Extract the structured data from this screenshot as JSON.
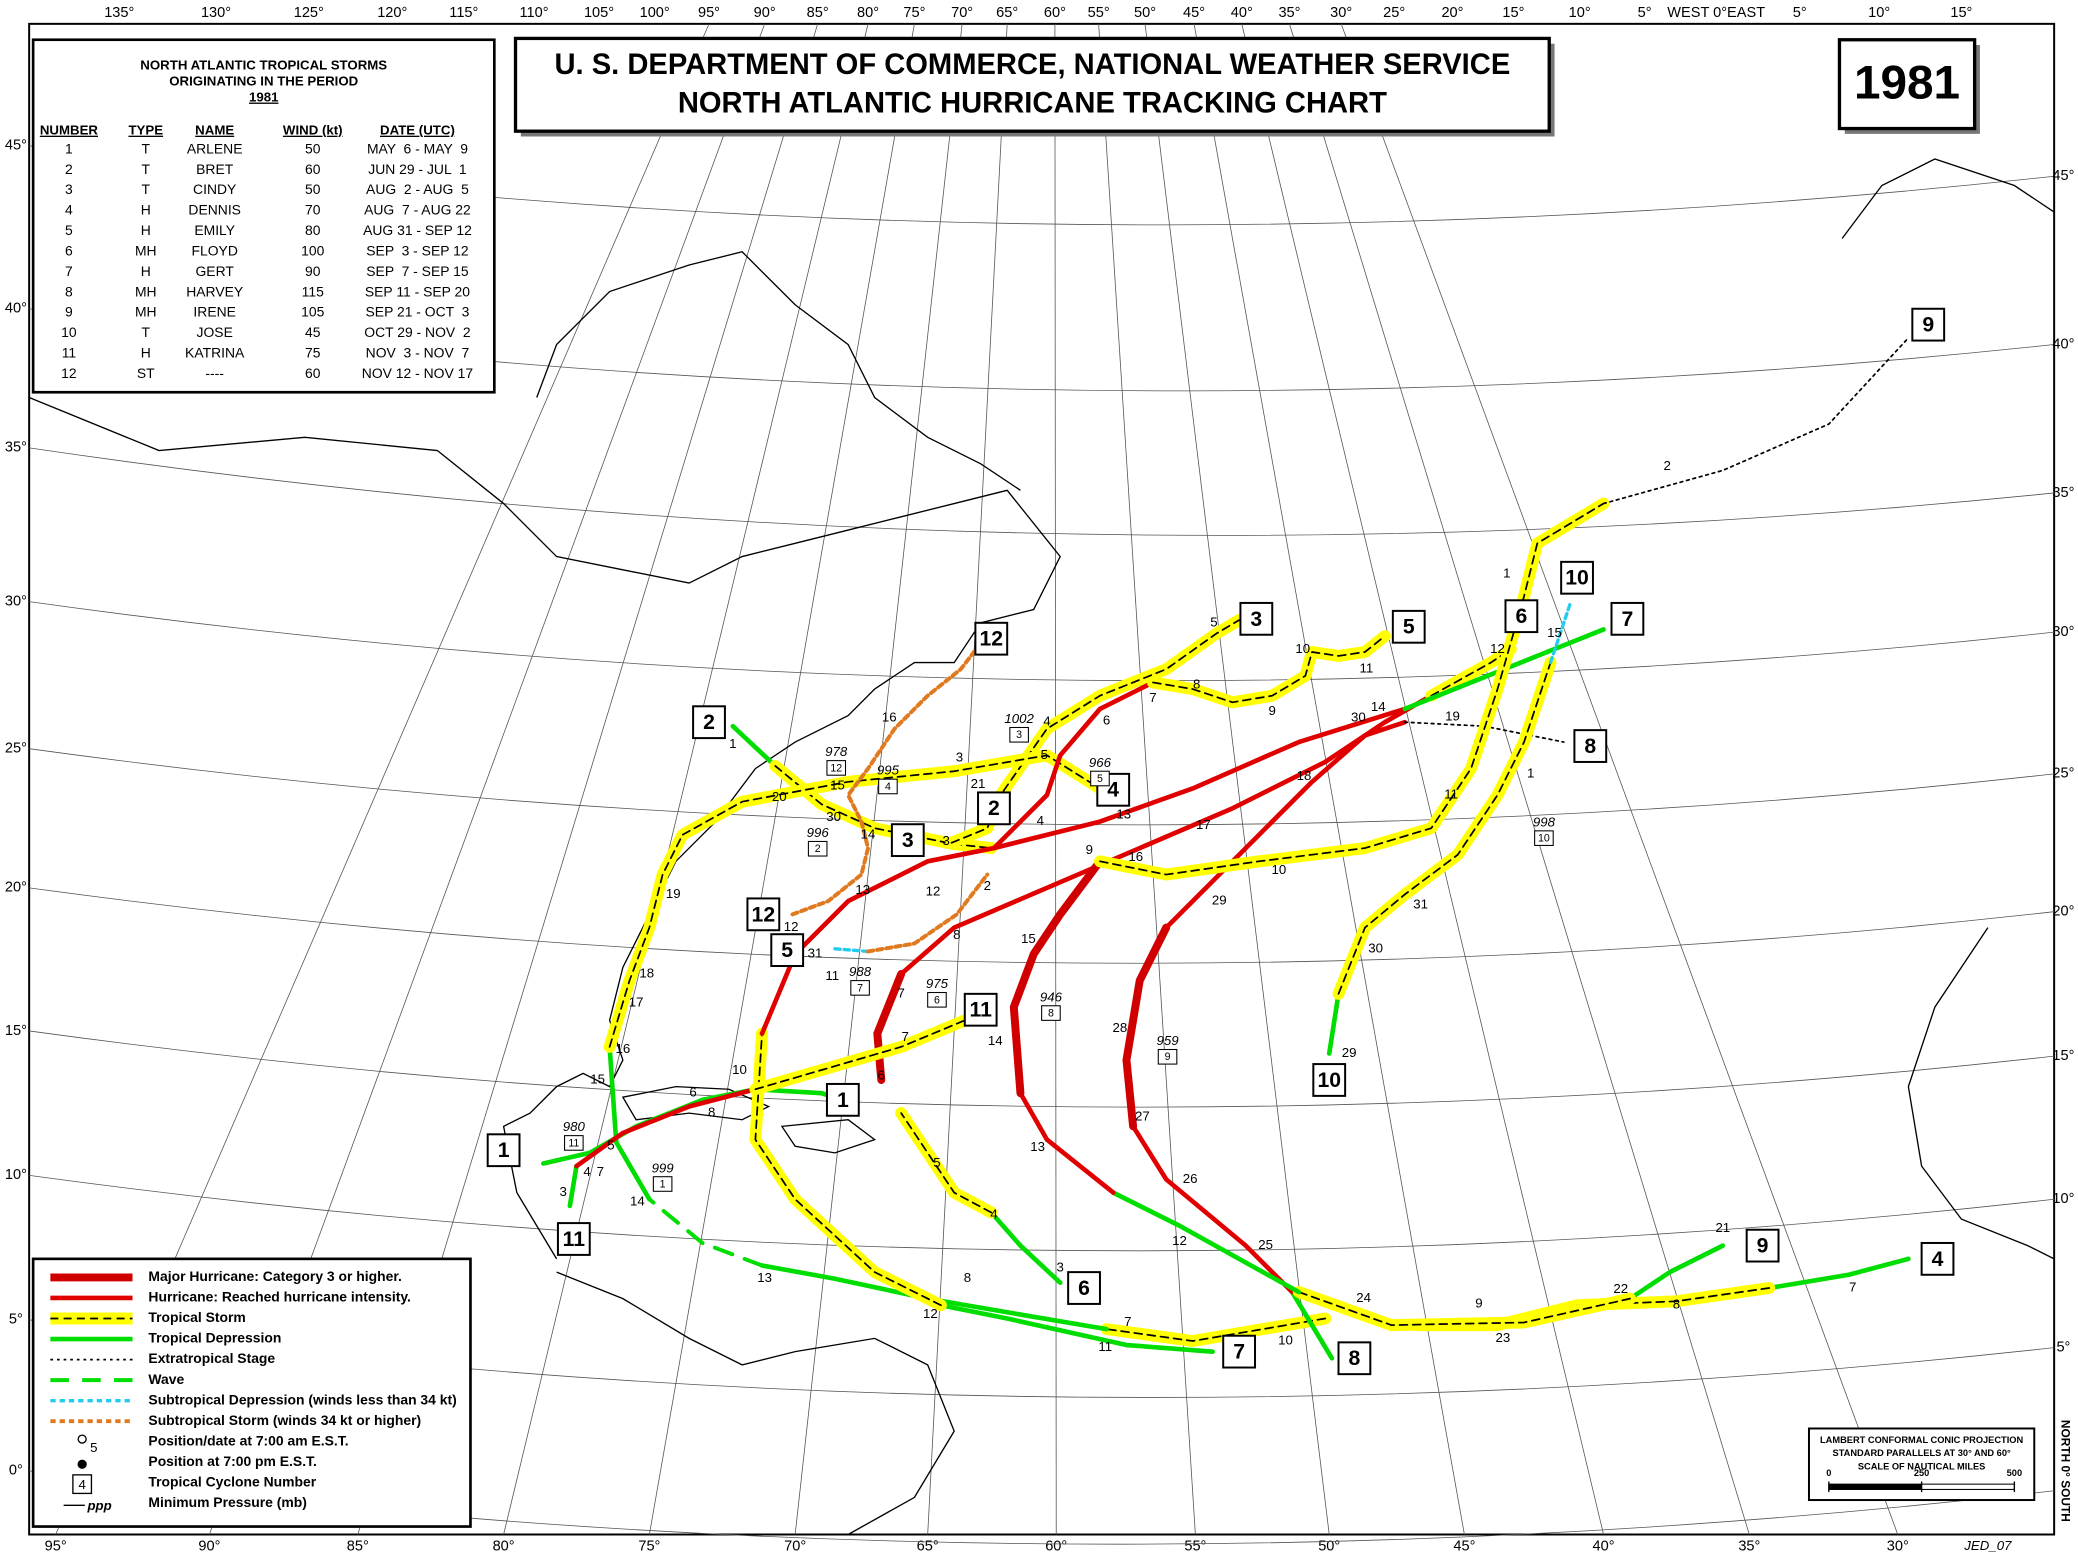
{
  "header": {
    "title_line1": "U. S. DEPARTMENT OF COMMERCE, NATIONAL WEATHER SERVICE",
    "title_line2": "NORTH ATLANTIC HURRICANE TRACKING CHART",
    "year": "1981"
  },
  "storm_table": {
    "title_lines": [
      "NORTH ATLANTIC TROPICAL STORMS",
      "ORIGINATING IN THE PERIOD",
      "1981"
    ],
    "columns": [
      "NUMBER",
      "TYPE",
      "NAME",
      "WIND (kt)",
      "DATE (UTC)"
    ],
    "rows": [
      [
        1,
        "T",
        "ARLENE",
        50,
        "MAY  6 - MAY  9"
      ],
      [
        2,
        "T",
        "BRET",
        60,
        "JUN 29 - JUL  1"
      ],
      [
        3,
        "T",
        "CINDY",
        50,
        "AUG  2 - AUG  5"
      ],
      [
        4,
        "H",
        "DENNIS",
        70,
        "AUG  7 - AUG 22"
      ],
      [
        5,
        "H",
        "EMILY",
        80,
        "AUG 31 - SEP 12"
      ],
      [
        6,
        "MH",
        "FLOYD",
        100,
        "SEP  3 - SEP 12"
      ],
      [
        7,
        "H",
        "GERT",
        90,
        "SEP  7 - SEP 15"
      ],
      [
        8,
        "MH",
        "HARVEY",
        115,
        "SEP 11 - SEP 20"
      ],
      [
        9,
        "MH",
        "IRENE",
        105,
        "SEP 21 - OCT  3"
      ],
      [
        10,
        "T",
        "JOSE",
        45,
        "OCT 29 - NOV  2"
      ],
      [
        11,
        "H",
        "KATRINA",
        75,
        "NOV  3 - NOV  7"
      ],
      [
        12,
        "ST",
        "----",
        60,
        "NOV 12 - NOV 17"
      ]
    ]
  },
  "legend": {
    "items": [
      "Major Hurricane: Category 3 or higher.",
      "Hurricane: Reached hurricane intensity.",
      "Tropical Storm",
      "Tropical Depression",
      "Extratropical Stage",
      "Wave",
      "Subtropical Depression (winds less than 34 kt)",
      "Subtropical Storm (winds 34 kt or higher)",
      "Position/date at 7:00 am E.S.T.",
      "Position at 7:00 pm E.S.T.",
      "Tropical Cyclone Number",
      "Minimum Pressure (mb)"
    ],
    "symbol_labels": [
      "5",
      "4",
      "ppp"
    ]
  },
  "projection": {
    "lines": [
      "LAMBERT CONFORMAL CONIC PROJECTION",
      "STANDARD PARALLELS AT 30° AND 60°",
      "SCALE OF NAUTICAL MILES"
    ],
    "scale_ticks": [
      0,
      250,
      500
    ]
  },
  "credit": "JED_07",
  "hemisphere_note": "NORTH 0° SOUTH",
  "longitude_labels_top": [
    "135°",
    "130°",
    "125°",
    "120°",
    "115°",
    "110°",
    "105°",
    "100°",
    "95°",
    "90°",
    "85°",
    "80°",
    "75°",
    "70°",
    "65°",
    "60°",
    "55°",
    "50°",
    "45°",
    "40°",
    "35°",
    "30°",
    "25°",
    "20°",
    "15°",
    "10°",
    "5°",
    "WEST 0°EAST",
    "5°",
    "10°",
    "15°"
  ],
  "longitude_labels_bottom": [
    "95°",
    "90°",
    "85°",
    "80°",
    "75°",
    "70°",
    "65°",
    "60°",
    "55°",
    "50°",
    "45°",
    "40°",
    "35°",
    "30°"
  ],
  "latitude_labels_left": [
    "45°",
    "40°",
    "35°",
    "30°",
    "25°",
    "20°",
    "15°",
    "10°",
    "5°",
    "0°"
  ],
  "latitude_labels_right": [
    "45°",
    "40°",
    "35°",
    "30°",
    "25°",
    "20°",
    "15°",
    "10°",
    "5°"
  ],
  "storm_labels": [
    "1",
    "1",
    "2",
    "2",
    "3",
    "3",
    "4",
    "4",
    "5",
    "5",
    "6",
    "6",
    "7",
    "7",
    "8",
    "8",
    "9",
    "9",
    "10",
    "10",
    "11",
    "11",
    "12",
    "12"
  ],
  "pressure_labels": [
    {
      "pressure": 1002,
      "storm": "3"
    },
    {
      "pressure": 978,
      "storm": "12"
    },
    {
      "pressure": 995,
      "storm": "4"
    },
    {
      "pressure": 996,
      "storm": "2"
    },
    {
      "pressure": 966,
      "storm": "5"
    },
    {
      "pressure": 988,
      "storm": "7"
    },
    {
      "pressure": 975,
      "storm": "6"
    },
    {
      "pressure": 946,
      "storm": "8"
    },
    {
      "pressure": 959,
      "storm": "9"
    },
    {
      "pressure": 980,
      "storm": "11"
    },
    {
      "pressure": 999,
      "storm": "1"
    },
    {
      "pressure": 998,
      "storm": "10"
    }
  ],
  "date_labels": [
    "1",
    "20",
    "15",
    "30",
    "14",
    "13",
    "12",
    "19",
    "18",
    "17",
    "16",
    "15",
    "5",
    "4",
    "7",
    "3",
    "14",
    "13",
    "12",
    "11",
    "10",
    "7",
    "6",
    "8",
    "10",
    "11",
    "7",
    "7",
    "6",
    "5",
    "4",
    "8",
    "3",
    "31",
    "8",
    "2",
    "12",
    "4",
    "9",
    "16",
    "15",
    "14",
    "13",
    "12",
    "25",
    "26",
    "27",
    "28",
    "29",
    "17",
    "13",
    "18",
    "30",
    "14",
    "19",
    "1",
    "11",
    "10",
    "31",
    "30",
    "29",
    "9",
    "8",
    "7",
    "6",
    "5",
    "4",
    "21",
    "3",
    "3",
    "5",
    "10",
    "11",
    "12",
    "15",
    "1",
    "2",
    "24",
    "9",
    "23",
    "22",
    "8",
    "7",
    "21",
    "16"
  ]
}
